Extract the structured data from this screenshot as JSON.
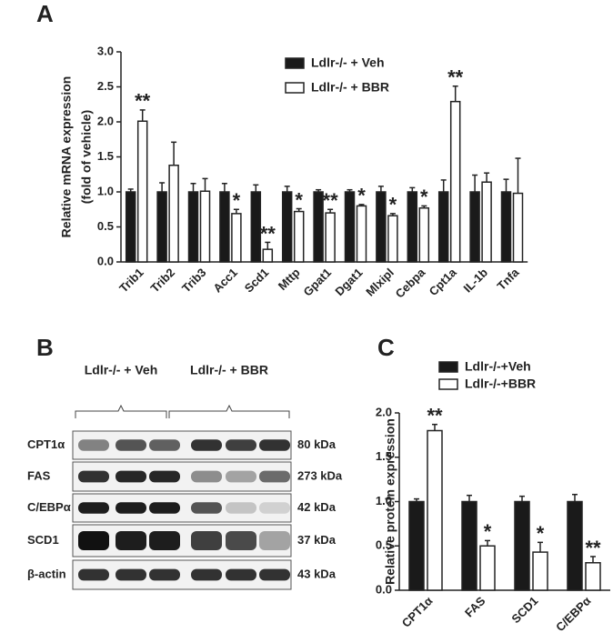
{
  "chart_data": [
    {
      "type": "bar",
      "panel_label": "A",
      "ylabel": [
        "Relative mRNA expression",
        "(fold of vehicle)"
      ],
      "categories": [
        "Trib1",
        "Trib2",
        "Trib3",
        "Acc1",
        "Scd1",
        "Mttp",
        "Gpat1",
        "Dgat1",
        "Mlxipl",
        "Cebpa",
        "Cpt1a",
        "IL-1b",
        "Tnfa"
      ],
      "series": [
        {
          "name": "Ldlr-/- + Veh",
          "color": "#1a1a1a",
          "values": [
            1,
            1,
            1,
            1,
            1,
            1,
            1,
            1,
            1,
            1,
            1,
            1,
            1
          ],
          "errors": [
            0.04,
            0.13,
            0.12,
            0.12,
            0.1,
            0.08,
            0.03,
            0.03,
            0.08,
            0.06,
            0.17,
            0.24,
            0.18
          ]
        },
        {
          "name": "Ldlr-/- + BBR",
          "color": "#ffffff",
          "values": [
            2.01,
            1.38,
            1.01,
            0.69,
            0.18,
            0.72,
            0.7,
            0.8,
            0.66,
            0.77,
            2.29,
            1.14,
            0.98
          ],
          "errors": [
            0.16,
            0.33,
            0.18,
            0.06,
            0.1,
            0.04,
            0.05,
            0.02,
            0.03,
            0.03,
            0.22,
            0.13,
            0.5
          ],
          "annotations": [
            "**",
            null,
            null,
            "*",
            "**",
            "*",
            "**",
            "*",
            "*",
            "*",
            "**",
            null,
            null
          ]
        }
      ],
      "ylim": [
        0,
        3
      ],
      "yticks": [
        {
          "value": 0,
          "label": "0.0"
        },
        {
          "value": 0.5,
          "label": "0.5"
        },
        {
          "value": 1,
          "label": "1.0"
        },
        {
          "value": 1.5,
          "label": "1.5"
        },
        {
          "value": 2,
          "label": "2.0"
        },
        {
          "value": 2.5,
          "label": "2.5"
        },
        {
          "value": 3,
          "label": "3.0"
        }
      ]
    },
    {
      "type": "bar",
      "panel_label": "C",
      "ylabel": [
        "Relative protein expression"
      ],
      "categories": [
        "CPT1α",
        "FAS",
        "SCD1",
        "C/EBPα"
      ],
      "series": [
        {
          "name": "Ldlr-/-+Veh",
          "color": "#1a1a1a",
          "values": [
            1,
            1,
            1,
            1
          ],
          "errors": [
            0.03,
            0.07,
            0.06,
            0.08
          ]
        },
        {
          "name": "Ldlr-/-+BBR",
          "color": "#ffffff",
          "values": [
            1.8,
            0.5,
            0.43,
            0.31
          ],
          "errors": [
            0.07,
            0.06,
            0.11,
            0.07
          ],
          "annotations": [
            "**",
            "*",
            "*",
            "**"
          ]
        }
      ],
      "ylim": [
        0,
        2
      ],
      "yticks": [
        {
          "value": 0,
          "label": "0.0"
        },
        {
          "value": 0.5,
          "label": "0.5"
        },
        {
          "value": 1,
          "label": "1.0"
        },
        {
          "value": 1.5,
          "label": "1.5"
        },
        {
          "value": 2,
          "label": "2.0"
        }
      ]
    }
  ],
  "blot": {
    "panel_label": "B",
    "groups": [
      "Ldlr-/- + Veh",
      "Ldlr-/- + BBR"
    ],
    "rows": [
      {
        "protein": "CPT1α",
        "size": "80 kDa"
      },
      {
        "protein": "FAS",
        "size": "273 kDa"
      },
      {
        "protein": "C/EBPα",
        "size": "42 kDa"
      },
      {
        "protein": "SCD1",
        "size": "37 kDa"
      },
      {
        "protein": "β-actin",
        "size": "43 kDa"
      }
    ]
  }
}
